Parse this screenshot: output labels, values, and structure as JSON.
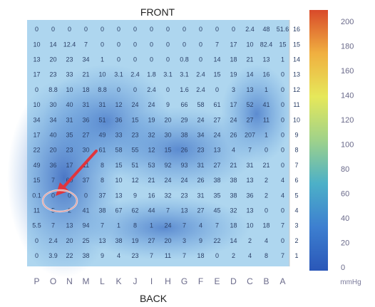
{
  "chart_data": {
    "type": "heatmap",
    "title_top": "FRONT",
    "title_bottom": "BACK",
    "colorbar": {
      "ticks": [
        200,
        180,
        160,
        140,
        120,
        100,
        80,
        60,
        40,
        20,
        0
      ],
      "unit": "mmHg",
      "range": [
        0,
        200
      ],
      "stops": [
        "#d94a2a",
        "#f0b040",
        "#e6e85a",
        "#9fd28a",
        "#4cb0c8",
        "#3d7fd0",
        "#2a57b8"
      ]
    },
    "x_categories": [
      "P",
      "O",
      "N",
      "M",
      "L",
      "K",
      "J",
      "I",
      "H",
      "G",
      "F",
      "E",
      "D",
      "C",
      "B",
      "A"
    ],
    "y_categories": [
      "16",
      "15",
      "14",
      "13",
      "12",
      "11",
      "10",
      "9",
      "8",
      "7",
      "6",
      "5",
      "4",
      "3",
      "2",
      "1"
    ],
    "values": [
      [
        "0",
        "0",
        "0",
        "0",
        "0",
        "0",
        "0",
        "0",
        "0",
        "0",
        "0",
        "0",
        "0",
        "2.4",
        "48",
        "51.6"
      ],
      [
        "10",
        "14",
        "12.4",
        "7",
        "0",
        "0",
        "0",
        "0",
        "0",
        "0",
        "0",
        "7",
        "17",
        "10",
        "82.4",
        "15"
      ],
      [
        "13",
        "20",
        "23",
        "34",
        "1",
        "0",
        "0",
        "0",
        "0",
        "0.8",
        "0",
        "14",
        "18",
        "21",
        "13",
        "1"
      ],
      [
        "17",
        "23",
        "33",
        "21",
        "10",
        "3.1",
        "2.4",
        "1.8",
        "3.1",
        "3.1",
        "2.4",
        "15",
        "19",
        "14",
        "16",
        "0"
      ],
      [
        "0",
        "8.8",
        "10",
        "18",
        "8.8",
        "0",
        "0",
        "2.4",
        "0",
        "1.6",
        "2.4",
        "0",
        "3",
        "13",
        "1",
        "0"
      ],
      [
        "10",
        "30",
        "40",
        "31",
        "31",
        "12",
        "24",
        "24",
        "9",
        "66",
        "58",
        "61",
        "17",
        "52",
        "41",
        "0"
      ],
      [
        "34",
        "34",
        "31",
        "36",
        "51",
        "36",
        "15",
        "19",
        "20",
        "29",
        "24",
        "27",
        "24",
        "27",
        "11",
        "0"
      ],
      [
        "17",
        "40",
        "35",
        "27",
        "49",
        "33",
        "23",
        "32",
        "30",
        "38",
        "34",
        "24",
        "26",
        "207",
        "1",
        "0"
      ],
      [
        "22",
        "20",
        "23",
        "30",
        "61",
        "58",
        "55",
        "12",
        "15",
        "26",
        "23",
        "13",
        "4",
        "7",
        "0",
        "0"
      ],
      [
        "49",
        "36",
        "17",
        "11",
        "8",
        "15",
        "51",
        "53",
        "92",
        "93",
        "31",
        "27",
        "21",
        "31",
        "21",
        "0"
      ],
      [
        "15",
        "7",
        "60",
        "37",
        "8",
        "10",
        "12",
        "21",
        "24",
        "24",
        "26",
        "38",
        "38",
        "13",
        "2",
        "4"
      ],
      [
        "0.1",
        "0",
        "0",
        "0",
        "37",
        "13",
        "9",
        "16",
        "32",
        "23",
        "31",
        "35",
        "38",
        "36",
        "2",
        "4"
      ],
      [
        "11",
        "5",
        "2",
        "41",
        "38",
        "67",
        "62",
        "44",
        "7",
        "13",
        "27",
        "45",
        "32",
        "13",
        "0",
        "0"
      ],
      [
        "5.5",
        "7",
        "13",
        "94",
        "7",
        "1",
        "8",
        "1",
        "24",
        "7",
        "4",
        "7",
        "18",
        "10",
        "18",
        "7"
      ],
      [
        "0",
        "2.4",
        "20",
        "25",
        "13",
        "38",
        "19",
        "27",
        "20",
        "3",
        "9",
        "22",
        "14",
        "2",
        "4",
        "0"
      ],
      [
        "0",
        "3.9",
        "22",
        "38",
        "9",
        "4",
        "23",
        "7",
        "11",
        "7",
        "18",
        "0",
        "2",
        "4",
        "8",
        "7"
      ]
    ]
  }
}
